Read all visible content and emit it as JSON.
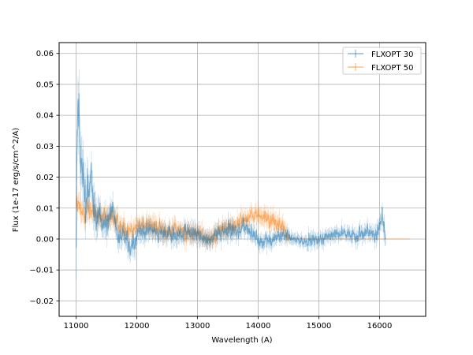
{
  "chart_data": {
    "type": "line",
    "xlabel": "Wavelength (A)",
    "ylabel": "Flux (1e-17 erg/s/cm^2/A)",
    "xlim": [
      10720,
      16760
    ],
    "ylim": [
      -0.025,
      0.0635
    ],
    "xticks": [
      11000,
      12000,
      13000,
      14000,
      15000,
      16000
    ],
    "xtick_labels": [
      "11000",
      "12000",
      "13000",
      "14000",
      "15000",
      "16000"
    ],
    "yticks": [
      -0.02,
      -0.01,
      0.0,
      0.01,
      0.02,
      0.03,
      0.04,
      0.05,
      0.06
    ],
    "ytick_labels": [
      "−0.02",
      "−0.01",
      "0.00",
      "0.01",
      "0.02",
      "0.03",
      "0.04",
      "0.05",
      "0.06"
    ],
    "grid": true,
    "legend_position": "top-right",
    "series": [
      {
        "name": "FLXOPT 30",
        "color": "#1f77b4",
        "x_range": [
          11000,
          16100
        ],
        "envelope": [
          [
            11000,
            0.0
          ],
          [
            11030,
            0.05
          ],
          [
            11060,
            0.03
          ],
          [
            11100,
            0.02
          ],
          [
            11150,
            0.012
          ],
          [
            11250,
            0.02
          ],
          [
            11300,
            0.008
          ],
          [
            11400,
            0.007
          ],
          [
            11500,
            0.005
          ],
          [
            11600,
            0.01
          ],
          [
            11700,
            0.0
          ],
          [
            11800,
            0.002
          ],
          [
            11900,
            -0.003
          ],
          [
            12000,
            0.001
          ],
          [
            12200,
            0.003
          ],
          [
            12400,
            0.002
          ],
          [
            12600,
            0.001
          ],
          [
            12800,
            0.002
          ],
          [
            13000,
            0.001
          ],
          [
            13200,
            0.0
          ],
          [
            13400,
            0.002
          ],
          [
            13600,
            0.003
          ],
          [
            13800,
            0.004
          ],
          [
            14000,
            -0.001
          ],
          [
            14200,
            0.0
          ],
          [
            14400,
            0.001
          ],
          [
            14600,
            0.0
          ],
          [
            14800,
            -0.001
          ],
          [
            15000,
            0.0
          ],
          [
            15200,
            0.001
          ],
          [
            15400,
            0.002
          ],
          [
            15600,
            0.001
          ],
          [
            15800,
            0.003
          ],
          [
            15950,
            0.001
          ],
          [
            16050,
            0.008
          ],
          [
            16100,
            0.0
          ]
        ],
        "noise": [
          [
            11000,
            0.014
          ],
          [
            11100,
            0.012
          ],
          [
            11250,
            0.009
          ],
          [
            11400,
            0.006
          ],
          [
            11800,
            0.005
          ],
          [
            12500,
            0.004
          ],
          [
            13500,
            0.004
          ],
          [
            14500,
            0.003
          ],
          [
            15500,
            0.003
          ],
          [
            16100,
            0.004
          ]
        ]
      },
      {
        "name": "FLXOPT 50",
        "color": "#ff7f0e",
        "x_range": [
          11000,
          16500
        ],
        "envelope": [
          [
            11000,
            0.012
          ],
          [
            11100,
            0.008
          ],
          [
            11200,
            0.01
          ],
          [
            11300,
            0.008
          ],
          [
            11400,
            0.007
          ],
          [
            11500,
            0.006
          ],
          [
            11600,
            0.007
          ],
          [
            11800,
            0.003
          ],
          [
            12000,
            0.004
          ],
          [
            12200,
            0.005
          ],
          [
            12400,
            0.003
          ],
          [
            12600,
            0.003
          ],
          [
            12800,
            0.002
          ],
          [
            13000,
            0.002
          ],
          [
            13200,
            0.0
          ],
          [
            13400,
            0.003
          ],
          [
            13600,
            0.004
          ],
          [
            13800,
            0.007
          ],
          [
            14000,
            0.008
          ],
          [
            14200,
            0.006
          ],
          [
            14400,
            0.004
          ],
          [
            14500,
            0.0
          ],
          [
            16500,
            0.0
          ]
        ],
        "noise": [
          [
            11000,
            0.005
          ],
          [
            12000,
            0.004
          ],
          [
            13000,
            0.004
          ],
          [
            14000,
            0.004
          ],
          [
            14450,
            0.004
          ],
          [
            14550,
            0.0
          ],
          [
            16500,
            0.0
          ]
        ]
      }
    ]
  }
}
